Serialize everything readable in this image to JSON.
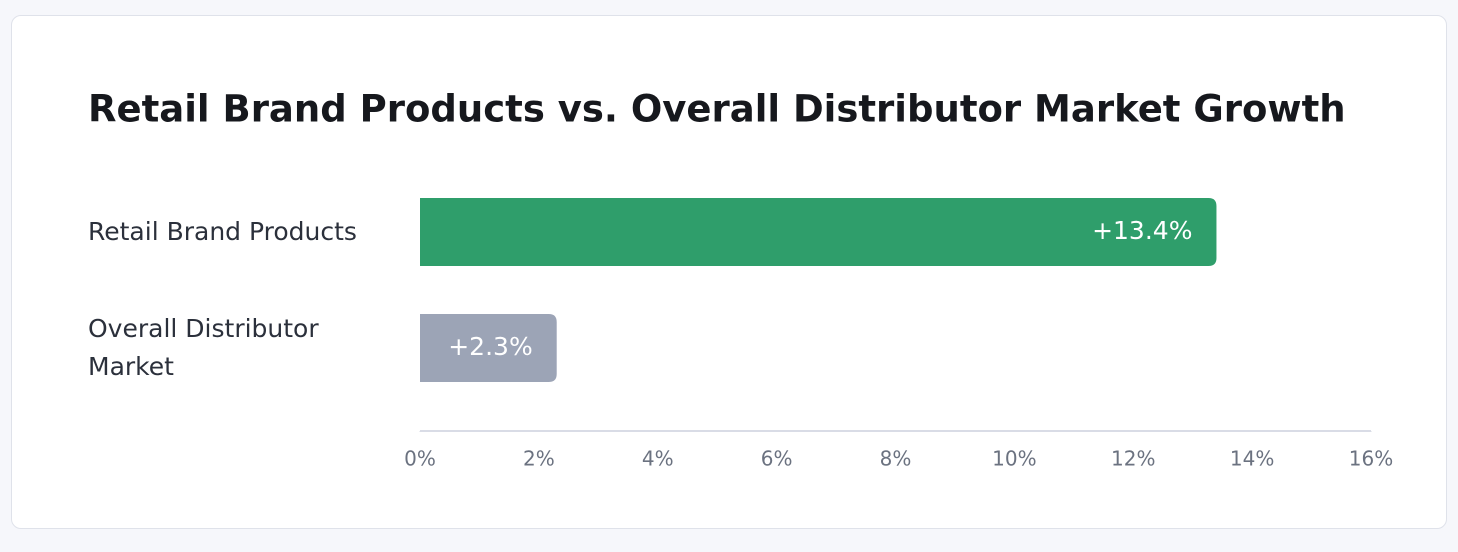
{
  "chart_data": {
    "type": "hbar",
    "title": "Retail Brand Products vs. Overall Distributor Market Growth",
    "categories": [
      "Retail Brand Products",
      "Overall Distributor Market"
    ],
    "values": [
      13.4,
      2.3
    ],
    "value_labels": [
      "+13.4%",
      "+2.3%"
    ],
    "colors": [
      "#2f9e6b",
      "#9ca4b6"
    ],
    "xlim": [
      0,
      16
    ],
    "xticks": [
      {
        "value": 0,
        "label": "0%"
      },
      {
        "value": 2,
        "label": "2%"
      },
      {
        "value": 4,
        "label": "4%"
      },
      {
        "value": 6,
        "label": "6%"
      },
      {
        "value": 8,
        "label": "8%"
      },
      {
        "value": 10,
        "label": "10%"
      },
      {
        "value": 12,
        "label": "12%"
      },
      {
        "value": 14,
        "label": "14%"
      },
      {
        "value": 16,
        "label": "16%"
      }
    ]
  }
}
